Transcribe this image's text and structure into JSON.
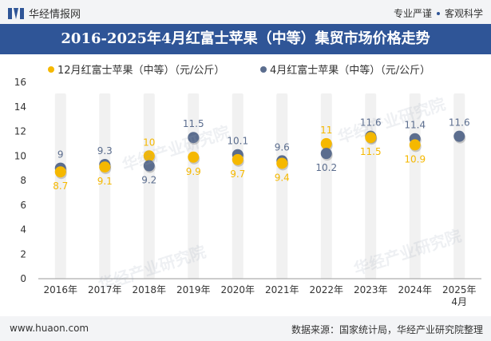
{
  "header": {
    "site_name": "华经情报网",
    "slogan_left": "专业严谨",
    "slogan_right": "客观科学"
  },
  "footer": {
    "url": "www.huaon.com",
    "source": "数据来源：国家统计局，华经产业研究院整理"
  },
  "watermark": "华经产业研究院",
  "colors": {
    "series1": "#f5b800",
    "series2": "#5b6d8e",
    "header_bg": "#2f5597",
    "bar_bg": "#f1f1f1"
  },
  "chart_data": {
    "type": "scatter",
    "title": "2016-2025年4月红富士苹果（中等）集贸市场价格走势",
    "categories": [
      "2016年",
      "2017年",
      "2018年",
      "2019年",
      "2020年",
      "2021年",
      "2022年",
      "2023年",
      "2024年",
      "2025年\n4月"
    ],
    "series": [
      {
        "name": "12月红富士苹果（中等）（元/公斤）",
        "values": [
          8.7,
          9.1,
          10,
          9.9,
          9.7,
          9.4,
          11,
          11.5,
          10.9,
          null
        ]
      },
      {
        "name": "4月红富士苹果（中等）（元/公斤）",
        "values": [
          9,
          9.3,
          9.2,
          11.5,
          10.1,
          9.6,
          10.2,
          11.6,
          11.4,
          11.6
        ]
      }
    ],
    "ylim": [
      0,
      16
    ],
    "yticks": [
      0,
      2,
      4,
      6,
      8,
      10,
      12,
      14,
      16
    ],
    "grid": false,
    "legend_position": "top"
  }
}
